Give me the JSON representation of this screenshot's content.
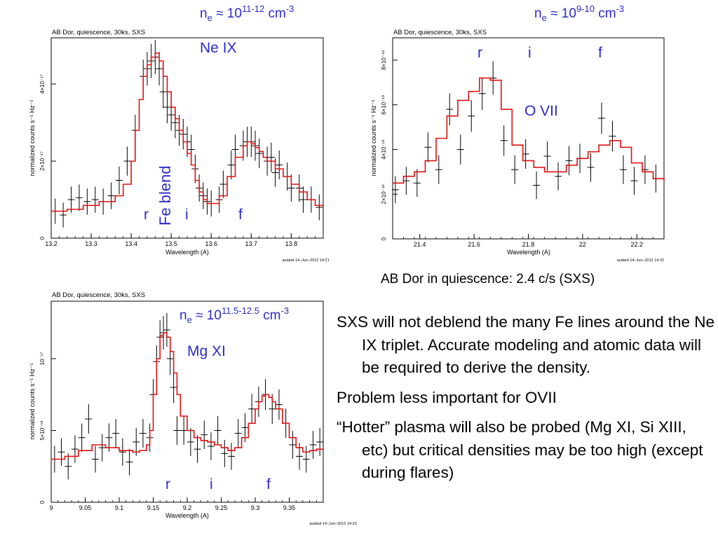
{
  "chart_data": [
    {
      "type": "line",
      "panel_title": "AB Dor, quiescence, 30ks, SXS",
      "xlabel": "Wavelength (A)",
      "ylabel": "normalized counts s⁻¹ Hz⁻¹",
      "footer": "audard 14–Jun–2012 14:21",
      "xlim": [
        13.2,
        13.88
      ],
      "ylim": [
        0,
        5.2
      ],
      "y_scale": 1e-17,
      "x_ticks": [
        13.2,
        13.3,
        13.4,
        13.5,
        13.6,
        13.7,
        13.8
      ],
      "x_tick_labels": [
        "13.2",
        "13.3",
        "13.4",
        "13.5",
        "13.6",
        "13.7",
        "13.8"
      ],
      "y_ticks": [
        0,
        2,
        4
      ],
      "y_tick_labels": [
        "0",
        "2×10⁻¹⁷",
        "4×10⁻¹⁷"
      ],
      "annotations": {
        "density_prefix": "n",
        "density_sub": "e",
        "density_mid": " ≈ 10",
        "density_exp": "11-12",
        "density_unit": " cm",
        "density_unit_exp": "-3",
        "ion": "Ne IX",
        "blend": "Fe blend",
        "r": "r",
        "i": "i",
        "f": "f"
      },
      "series": [
        {
          "name": "model",
          "x": [
            13.2,
            13.24,
            13.28,
            13.32,
            13.36,
            13.38,
            13.4,
            13.41,
            13.42,
            13.43,
            13.44,
            13.45,
            13.46,
            13.47,
            13.48,
            13.49,
            13.5,
            13.51,
            13.52,
            13.53,
            13.54,
            13.55,
            13.56,
            13.57,
            13.58,
            13.59,
            13.6,
            13.62,
            13.64,
            13.66,
            13.68,
            13.69,
            13.7,
            13.71,
            13.72,
            13.73,
            13.74,
            13.76,
            13.78,
            13.8,
            13.82,
            13.84,
            13.86,
            13.88
          ],
          "y": [
            0.7,
            0.75,
            0.85,
            0.95,
            1.1,
            1.4,
            2.0,
            2.8,
            3.6,
            4.2,
            4.5,
            4.7,
            4.8,
            4.6,
            4.2,
            3.8,
            3.4,
            3.1,
            2.8,
            2.5,
            2.2,
            1.9,
            1.5,
            1.2,
            1.0,
            0.9,
            0.9,
            1.1,
            1.6,
            2.1,
            2.4,
            2.5,
            2.45,
            2.35,
            2.25,
            2.1,
            2.0,
            1.8,
            1.6,
            1.4,
            1.2,
            1.0,
            0.85,
            0.8
          ]
        },
        {
          "name": "data",
          "x": [
            13.21,
            13.23,
            13.25,
            13.27,
            13.29,
            13.31,
            13.33,
            13.35,
            13.37,
            13.39,
            13.41,
            13.43,
            13.44,
            13.45,
            13.46,
            13.47,
            13.48,
            13.49,
            13.5,
            13.51,
            13.52,
            13.53,
            13.54,
            13.55,
            13.56,
            13.57,
            13.58,
            13.59,
            13.6,
            13.62,
            13.63,
            13.65,
            13.66,
            13.68,
            13.69,
            13.7,
            13.71,
            13.72,
            13.74,
            13.75,
            13.76,
            13.77,
            13.79,
            13.8,
            13.82,
            13.83,
            13.85,
            13.87
          ],
          "y": [
            0.7,
            0.6,
            1.0,
            1.05,
            0.95,
            1.0,
            0.95,
            1.1,
            1.5,
            2.0,
            2.8,
            4.2,
            4.4,
            4.6,
            4.7,
            4.4,
            3.8,
            3.4,
            3.2,
            3.0,
            2.8,
            2.7,
            2.5,
            2.3,
            1.8,
            1.3,
            1.1,
            0.95,
            0.9,
            1.0,
            1.4,
            1.9,
            2.3,
            2.4,
            2.5,
            2.5,
            2.4,
            2.2,
            2.0,
            2.1,
            1.7,
            1.9,
            1.6,
            1.3,
            1.3,
            1.0,
            1.0,
            0.8
          ]
        }
      ]
    },
    {
      "type": "line",
      "panel_title": "AB Dor, quiescence, 30ks, SXS",
      "xlabel": "Wavelength (A)",
      "ylabel": "normalized counts s⁻¹ Hz⁻¹",
      "footer": "audard 14–Jun–2012 14:22",
      "xlim": [
        21.3,
        22.3
      ],
      "ylim": [
        0,
        9.0
      ],
      "y_scale": 1e-18,
      "x_ticks": [
        21.4,
        21.6,
        21.8,
        22.0,
        22.2
      ],
      "x_tick_labels": [
        "21.4",
        "21.6",
        "21.8",
        "22",
        "22.2"
      ],
      "y_ticks": [
        0,
        2,
        4,
        6,
        8
      ],
      "y_tick_labels": [
        "0",
        "2×10⁻¹⁸",
        "4×10⁻¹⁸",
        "6×10⁻¹⁸",
        "8×10⁻¹⁸"
      ],
      "annotations": {
        "density_prefix": "n",
        "density_sub": "e",
        "density_mid": " ≈ 10",
        "density_exp": "9-10",
        "density_unit": " cm",
        "density_unit_exp": "-3",
        "ion": "O VII",
        "r": "r",
        "i": "i",
        "f": "f"
      },
      "series": [
        {
          "name": "model",
          "x": [
            21.3,
            21.34,
            21.38,
            21.42,
            21.46,
            21.5,
            21.54,
            21.58,
            21.62,
            21.66,
            21.7,
            21.74,
            21.78,
            21.82,
            21.86,
            21.9,
            21.94,
            21.98,
            22.02,
            22.06,
            22.1,
            22.14,
            22.18,
            22.22,
            22.26,
            22.3
          ],
          "y": [
            2.5,
            2.8,
            3.0,
            3.5,
            4.5,
            5.5,
            6.2,
            6.6,
            7.2,
            7.1,
            5.8,
            4.2,
            3.5,
            3.2,
            3.0,
            3.0,
            3.3,
            3.6,
            3.9,
            4.2,
            4.4,
            4.1,
            3.4,
            3.0,
            2.7,
            2.6
          ]
        },
        {
          "name": "data",
          "x": [
            21.31,
            21.35,
            21.39,
            21.43,
            21.47,
            21.51,
            21.55,
            21.59,
            21.63,
            21.67,
            21.71,
            21.75,
            21.79,
            21.83,
            21.87,
            21.91,
            21.95,
            21.99,
            22.03,
            22.07,
            22.11,
            22.15,
            22.19,
            22.23,
            22.27
          ],
          "y": [
            2.2,
            2.6,
            2.5,
            4.1,
            3.1,
            5.8,
            4.0,
            5.5,
            6.5,
            7.2,
            4.4,
            3.1,
            3.8,
            2.4,
            3.7,
            2.8,
            3.5,
            3.6,
            3.2,
            5.4,
            4.6,
            3.1,
            2.6,
            3.1,
            2.7
          ]
        }
      ]
    },
    {
      "type": "line",
      "panel_title": "AB Dor, quiescence, 30ks, SXS",
      "xlabel": "Wavelength (A)",
      "ylabel": "normalized counts s⁻¹ Hz⁻¹",
      "footer": "audard 14–Jun–2012 14:23",
      "xlim": [
        9.0,
        9.4
      ],
      "ylim": [
        0,
        14
      ],
      "y_scale": 1e-18,
      "x_ticks": [
        9.0,
        9.05,
        9.1,
        9.15,
        9.2,
        9.25,
        9.3,
        9.35
      ],
      "x_tick_labels": [
        "9",
        "9.05",
        "9.1",
        "9.15",
        "9.2",
        "9.25",
        "9.3",
        "9.35"
      ],
      "y_ticks": [
        0,
        5,
        10
      ],
      "y_tick_labels": [
        "0",
        "5×10⁻¹⁸",
        "10⁻¹⁷"
      ],
      "annotations": {
        "density_prefix": "n",
        "density_sub": "e",
        "density_mid": " ≈ 10",
        "density_exp": "11.5-12.5",
        "density_unit": " cm",
        "density_unit_exp": "-3",
        "ion": "Mg XI",
        "r": "r",
        "i": "i",
        "f": "f"
      },
      "series": [
        {
          "name": "model",
          "x": [
            9.0,
            9.02,
            9.04,
            9.06,
            9.08,
            9.1,
            9.12,
            9.13,
            9.14,
            9.145,
            9.15,
            9.155,
            9.16,
            9.165,
            9.17,
            9.175,
            9.18,
            9.185,
            9.19,
            9.2,
            9.21,
            9.22,
            9.23,
            9.24,
            9.25,
            9.26,
            9.27,
            9.28,
            9.29,
            9.3,
            9.305,
            9.31,
            9.315,
            9.32,
            9.325,
            9.33,
            9.34,
            9.35,
            9.36,
            9.37,
            9.38,
            9.39,
            9.4
          ],
          "y": [
            3.0,
            3.2,
            3.6,
            4.0,
            3.8,
            3.6,
            3.5,
            3.6,
            4.0,
            5.0,
            7.5,
            10.0,
            11.6,
            11.8,
            11.5,
            10.5,
            9.0,
            7.5,
            6.0,
            5.0,
            4.5,
            4.3,
            4.2,
            4.0,
            3.8,
            3.6,
            3.8,
            4.5,
            5.5,
            6.5,
            7.0,
            7.4,
            7.5,
            7.3,
            7.0,
            6.5,
            5.5,
            4.5,
            3.8,
            3.5,
            3.6,
            3.7,
            3.6
          ]
        },
        {
          "name": "data",
          "x": [
            9.005,
            9.015,
            9.025,
            9.035,
            9.045,
            9.055,
            9.065,
            9.075,
            9.085,
            9.095,
            9.105,
            9.115,
            9.125,
            9.135,
            9.145,
            9.15,
            9.155,
            9.16,
            9.165,
            9.17,
            9.175,
            9.18,
            9.185,
            9.195,
            9.205,
            9.215,
            9.225,
            9.235,
            9.245,
            9.255,
            9.265,
            9.275,
            9.285,
            9.295,
            9.305,
            9.315,
            9.325,
            9.335,
            9.345,
            9.355,
            9.365,
            9.375,
            9.385,
            9.395
          ],
          "y": [
            3.0,
            3.5,
            2.5,
            3.7,
            4.5,
            5.8,
            3.0,
            3.8,
            4.5,
            4.8,
            3.5,
            2.8,
            4.2,
            4.8,
            4.5,
            7.5,
            9.8,
            11.5,
            11.8,
            12.0,
            10.0,
            8.0,
            5.0,
            5.0,
            4.2,
            3.7,
            4.7,
            3.9,
            5.0,
            3.4,
            3.2,
            4.8,
            5.2,
            6.5,
            7.0,
            7.5,
            6.5,
            6.8,
            5.5,
            4.0,
            3.2,
            3.0,
            4.0,
            4.2
          ]
        }
      ]
    }
  ],
  "caption": "AB Dor in quiescence: 2.4 c/s (SXS)",
  "bullets": [
    "SXS will not deblend the many Fe lines around the Ne IX triplet. Accurate modeling and atomic data will be required to derive the density.",
    "Problem less important for OVII",
    "“Hotter” plasma will also be probed (Mg XI, Si XIII, etc) but critical densities may be too high (except during flares)"
  ],
  "colors": {
    "model": "#e01010",
    "data": "#000000",
    "annotation": "#2a2acb"
  }
}
